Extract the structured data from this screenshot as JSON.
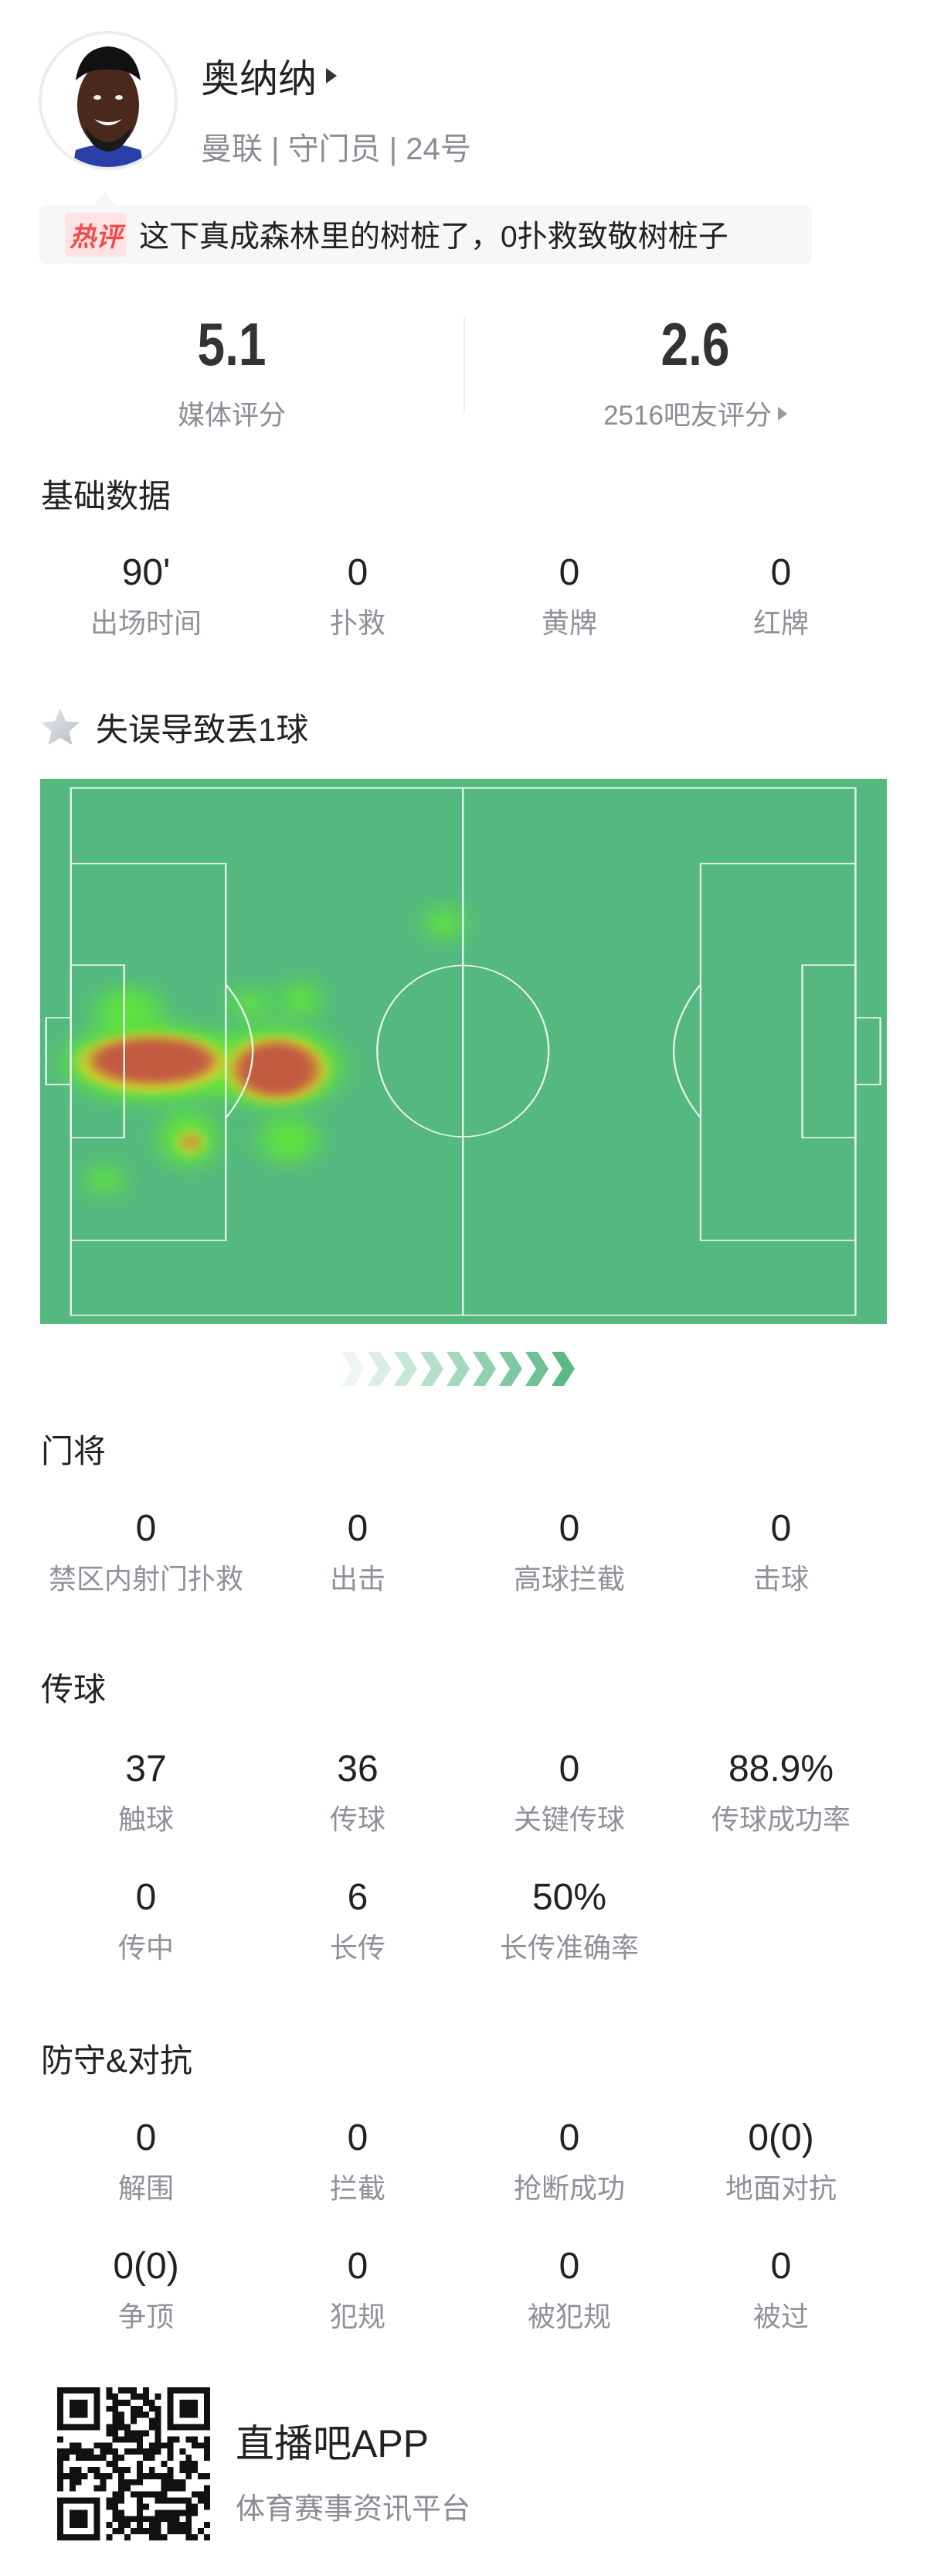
{
  "player": {
    "name": "奥纳纳",
    "team": "曼联",
    "position": "守门员",
    "number": "24号",
    "separator": " | "
  },
  "hot_comment": {
    "tag": "热评",
    "text": "这下真成森林里的树桩了，0扑救致敬树桩子"
  },
  "ratings": {
    "media": {
      "value": "5.1",
      "label": "媒体评分"
    },
    "fans": {
      "value": "2.6",
      "label": "2516吧友评分"
    }
  },
  "basic": {
    "title": "基础数据",
    "stats": [
      {
        "value": "90'",
        "label": "出场时间"
      },
      {
        "value": "0",
        "label": "扑救"
      },
      {
        "value": "0",
        "label": "黄牌"
      },
      {
        "value": "0",
        "label": "红牌"
      }
    ]
  },
  "highlight": {
    "icon": "star-icon",
    "text": "失误导致丢1球"
  },
  "heatmap": {
    "pitch_color": "#55b97f",
    "line_color": "#ffffff",
    "attack_direction": "left-to-right"
  },
  "goalkeeping": {
    "title": "门将",
    "stats": [
      {
        "value": "0",
        "label": "禁区内射门扑救"
      },
      {
        "value": "0",
        "label": "出击"
      },
      {
        "value": "0",
        "label": "高球拦截"
      },
      {
        "value": "0",
        "label": "击球"
      }
    ]
  },
  "passing": {
    "title": "传球",
    "stats": [
      {
        "value": "37",
        "label": "触球"
      },
      {
        "value": "36",
        "label": "传球"
      },
      {
        "value": "0",
        "label": "关键传球"
      },
      {
        "value": "88.9%",
        "label": "传球成功率"
      },
      {
        "value": "0",
        "label": "传中"
      },
      {
        "value": "6",
        "label": "长传"
      },
      {
        "value": "50%",
        "label": "长传准确率"
      }
    ]
  },
  "defense": {
    "title": "防守&对抗",
    "stats": [
      {
        "value": "0",
        "label": "解围"
      },
      {
        "value": "0",
        "label": "拦截"
      },
      {
        "value": "0",
        "label": "抢断成功"
      },
      {
        "value": "0(0)",
        "label": "地面对抗"
      },
      {
        "value": "0(0)",
        "label": "争顶"
      },
      {
        "value": "0",
        "label": "犯规"
      },
      {
        "value": "0",
        "label": "被犯规"
      },
      {
        "value": "0",
        "label": "被过"
      }
    ]
  },
  "footer": {
    "app_name": "直播吧APP",
    "tagline": "体育赛事资讯平台"
  },
  "colors": {
    "accent_red": "#f24d4d",
    "muted_text": "#8e9199",
    "pitch": "#55b97f"
  }
}
